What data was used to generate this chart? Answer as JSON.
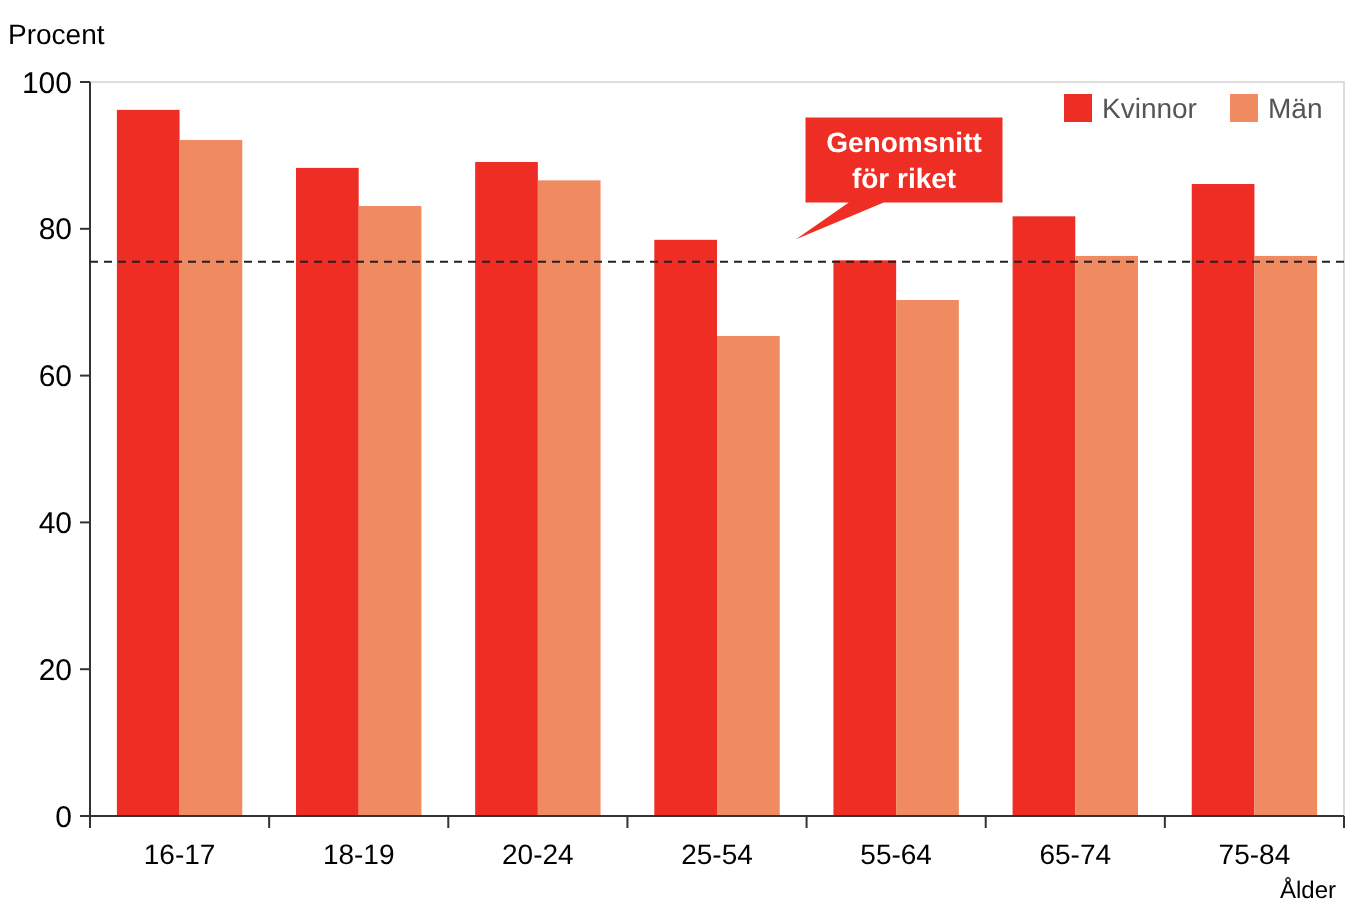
{
  "chart_data": {
    "type": "bar",
    "ylabel": "Procent",
    "xlabel": "Ålder",
    "categories": [
      "16-17",
      "18-19",
      "20-24",
      "25-54",
      "55-64",
      "65-74",
      "75-84"
    ],
    "series": [
      {
        "name": "Kvinnor",
        "color": "#ee2e24",
        "values": [
          96.2,
          88.3,
          89.1,
          78.5,
          75.7,
          81.7,
          86.1
        ]
      },
      {
        "name": "Män",
        "color": "#f08a60",
        "values": [
          92.1,
          83.1,
          86.6,
          65.4,
          70.3,
          76.3,
          76.3
        ]
      }
    ],
    "ylim": [
      0,
      100
    ],
    "yticks": [
      0,
      20,
      40,
      60,
      80,
      100
    ],
    "grid": false,
    "legend": "top right",
    "ref_lines": [
      {
        "axis": "y",
        "value": 75.5,
        "label": "Genomsnitt för riket",
        "color": "#222222",
        "line_style": "dashed"
      }
    ]
  }
}
